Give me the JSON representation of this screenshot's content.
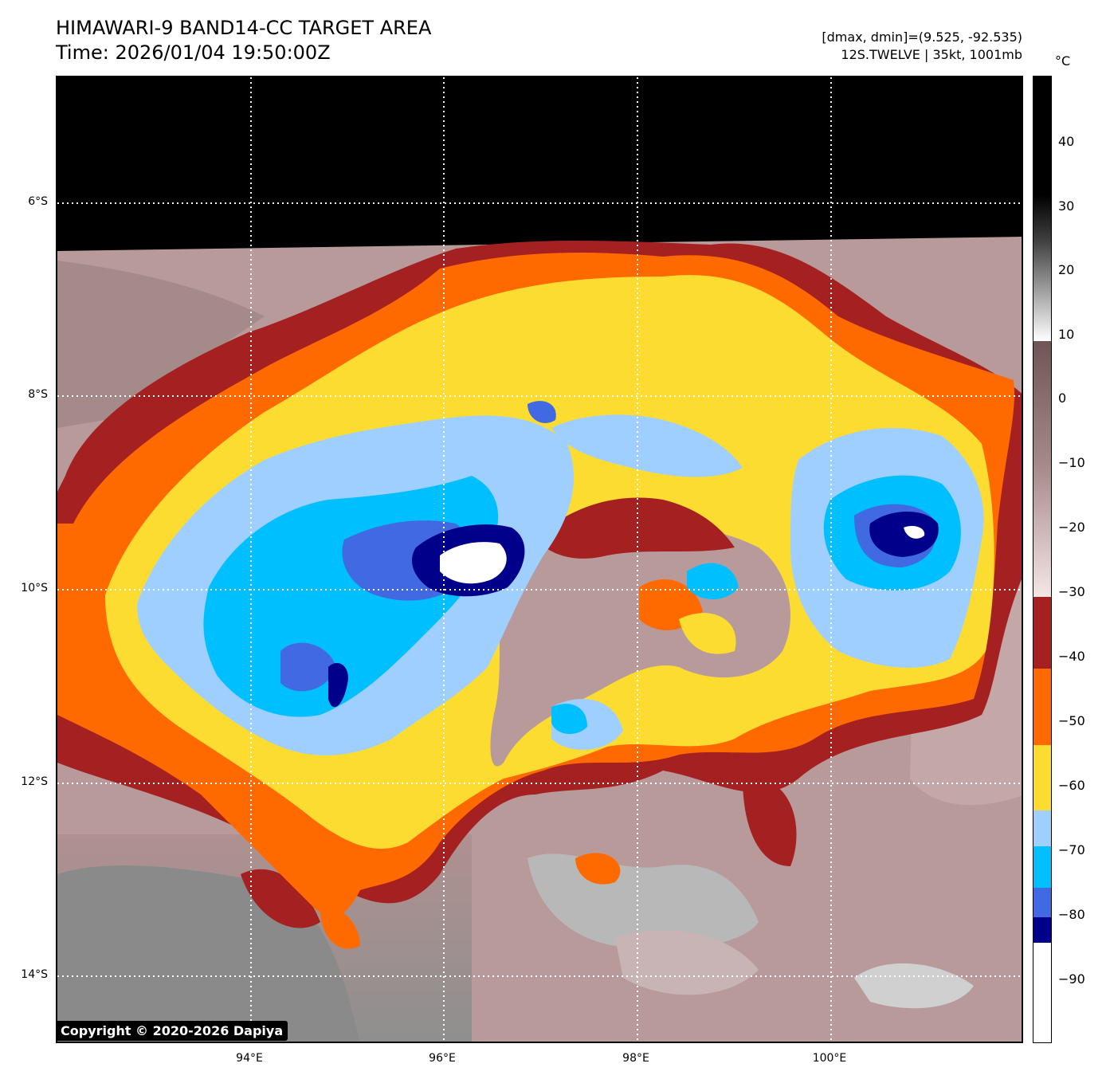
{
  "header": {
    "title": "HIMAWARI-9 BAND14-CC TARGET AREA",
    "time": "Time: 2026/01/04 19:50:00Z",
    "range": "[dmax, dmin]=(9.525, -92.535)",
    "storm": "12S.TWELVE | 35kt, 1001mb"
  },
  "map": {
    "lat_labels": [
      "6°S",
      "8°S",
      "10°S",
      "12°S",
      "14°S"
    ],
    "lon_labels": [
      "94°E",
      "96°E",
      "98°E",
      "100°E"
    ],
    "colors": {
      "no_data": "#000000",
      "warm_low": "#a08585",
      "warm_mid": "#c9a8a8",
      "warm_light": "#e2c9c9",
      "grey_cloud": "#b5b5b5",
      "band_m30_m40": "#a52020",
      "band_m40_m50": "#ff6a00",
      "band_m50_m60": "#fddc32",
      "band_m60_m70": "#9fcfff",
      "band_m70_m75": "#00bfff",
      "band_m75_m80": "#4169e1",
      "band_m80_m85": "#00008b",
      "band_below_m85": "#ffffff"
    }
  },
  "colorbar": {
    "unit": "°C",
    "ticks": [
      "40",
      "30",
      "20",
      "10",
      "0",
      "−10",
      "−20",
      "−30",
      "−40",
      "−50",
      "−60",
      "−70",
      "−80",
      "−90"
    ]
  },
  "footer": {
    "copyright": "Copyright © 2020-2026 Dapiya"
  }
}
